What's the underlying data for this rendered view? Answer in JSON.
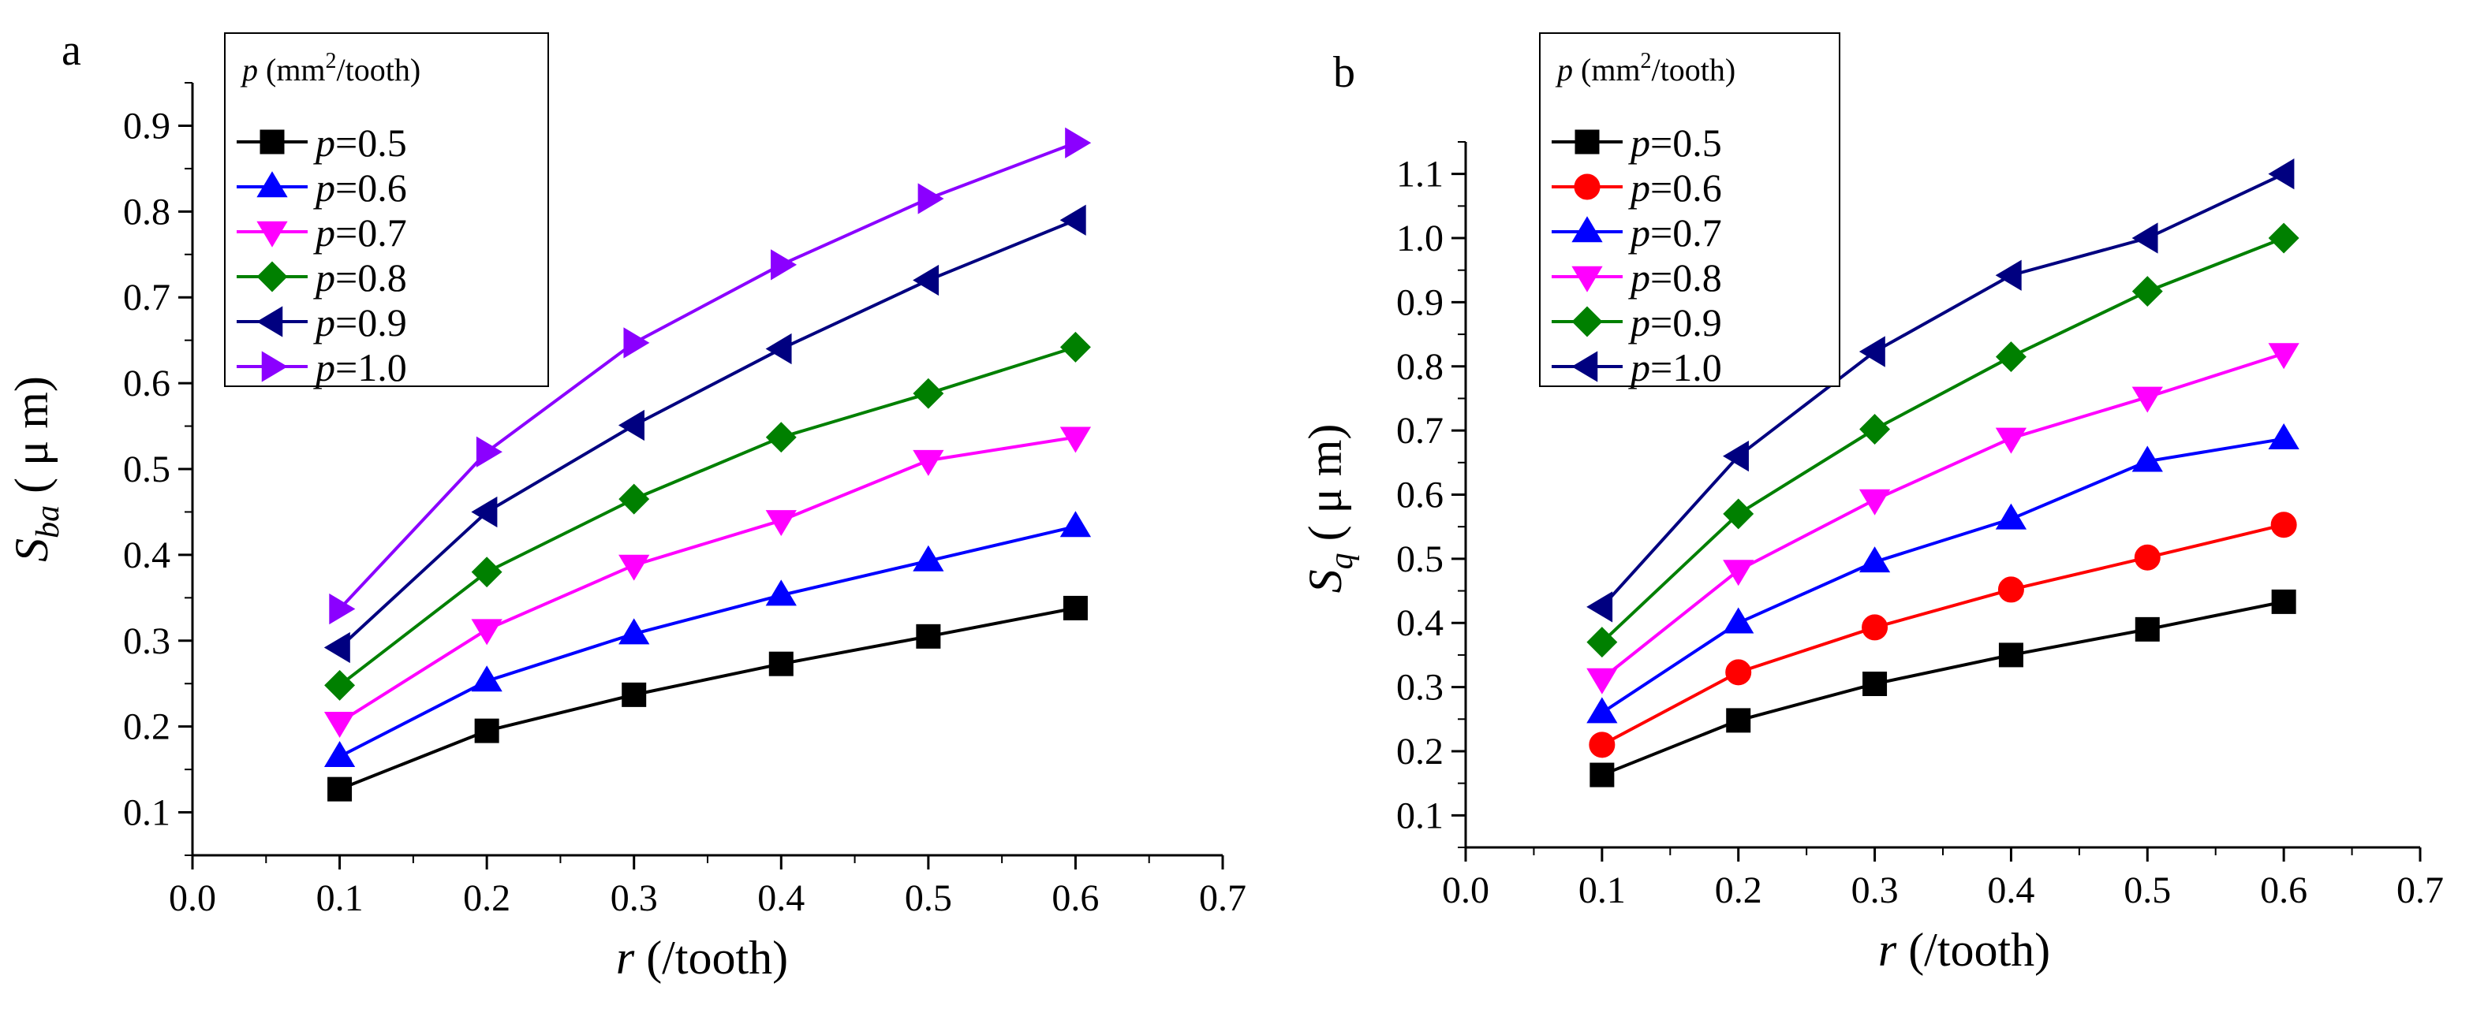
{
  "chart_data": [
    {
      "panel_label": "a",
      "type": "line",
      "xlabel_var": "r",
      "xlabel_unit": "(/tooth)",
      "ylabel_main": "S",
      "ylabel_sub": "ba",
      "ylabel_unit": "( μ m)",
      "xlim": [
        0.0,
        0.7
      ],
      "ylim": [
        0.05,
        0.95
      ],
      "xticks": [
        "0.0",
        "0.1",
        "0.2",
        "0.3",
        "0.4",
        "0.5",
        "0.6",
        "0.7"
      ],
      "yticks": [
        "0.1",
        "0.2",
        "0.3",
        "0.4",
        "0.5",
        "0.6",
        "0.7",
        "0.8",
        "0.9"
      ],
      "legend_title_var": "p",
      "legend_title_unit": "(mm²/tooth)",
      "legend_title_sup": "2",
      "legend_placement": "top-left",
      "x": [
        0.1,
        0.2,
        0.3,
        0.4,
        0.5,
        0.6
      ],
      "series": [
        {
          "label_var": "p",
          "label_value": "=0.5",
          "color": "#000000",
          "marker": "square",
          "values": [
            0.127,
            0.195,
            0.237,
            0.273,
            0.305,
            0.338
          ]
        },
        {
          "label_var": "p",
          "label_value": "=0.6",
          "color": "#0000ff",
          "marker": "triangle-up",
          "values": [
            0.165,
            0.253,
            0.308,
            0.353,
            0.393,
            0.433
          ]
        },
        {
          "label_var": "p",
          "label_value": "=0.7",
          "color": "#ff00ff",
          "marker": "triangle-down",
          "values": [
            0.205,
            0.313,
            0.388,
            0.44,
            0.51,
            0.537
          ]
        },
        {
          "label_var": "p",
          "label_value": "=0.8",
          "color": "#008000",
          "marker": "diamond",
          "values": [
            0.248,
            0.38,
            0.465,
            0.537,
            0.588,
            0.642
          ]
        },
        {
          "label_var": "p",
          "label_value": "=0.9",
          "color": "#000080",
          "marker": "triangle-left",
          "values": [
            0.292,
            0.45,
            0.551,
            0.64,
            0.72,
            0.79
          ]
        },
        {
          "label_var": "p",
          "label_value": "=1.0",
          "color": "#8b00ff",
          "marker": "triangle-right",
          "values": [
            0.337,
            0.52,
            0.647,
            0.738,
            0.815,
            0.88
          ]
        }
      ]
    },
    {
      "panel_label": "b",
      "type": "line",
      "xlabel_var": "r",
      "xlabel_unit": "(/tooth)",
      "ylabel_main": "S",
      "ylabel_sub": "q",
      "ylabel_unit": "( μ m)",
      "xlim": [
        0.0,
        0.7
      ],
      "ylim": [
        0.05,
        1.15
      ],
      "xticks": [
        "0.0",
        "0.1",
        "0.2",
        "0.3",
        "0.4",
        "0.5",
        "0.6",
        "0.7"
      ],
      "yticks": [
        "0.1",
        "0.2",
        "0.3",
        "0.4",
        "0.5",
        "0.6",
        "0.7",
        "0.8",
        "0.9",
        "1.0",
        "1.1"
      ],
      "legend_title_var": "p",
      "legend_title_unit": "(mm²/tooth)",
      "legend_title_sup": "2",
      "legend_placement": "top-left",
      "x": [
        0.1,
        0.2,
        0.3,
        0.4,
        0.5,
        0.6
      ],
      "series": [
        {
          "label_var": "p",
          "label_value": "=0.5",
          "color": "#000000",
          "marker": "square",
          "values": [
            0.163,
            0.248,
            0.305,
            0.35,
            0.39,
            0.433
          ]
        },
        {
          "label_var": "p",
          "label_value": "=0.6",
          "color": "#ff0000",
          "marker": "circle",
          "values": [
            0.21,
            0.323,
            0.393,
            0.452,
            0.502,
            0.553
          ]
        },
        {
          "label_var": "p",
          "label_value": "=0.7",
          "color": "#0000ff",
          "marker": "triangle-up",
          "values": [
            0.26,
            0.4,
            0.495,
            0.562,
            0.652,
            0.687
          ]
        },
        {
          "label_var": "p",
          "label_value": "=0.8",
          "color": "#ff00ff",
          "marker": "triangle-down",
          "values": [
            0.313,
            0.482,
            0.592,
            0.688,
            0.752,
            0.82
          ]
        },
        {
          "label_var": "p",
          "label_value": "=0.9",
          "color": "#008000",
          "marker": "diamond",
          "values": [
            0.37,
            0.57,
            0.702,
            0.815,
            0.917,
            1.0
          ]
        },
        {
          "label_var": "p",
          "label_value": "=1.0",
          "color": "#000080",
          "marker": "triangle-left",
          "values": [
            0.425,
            0.66,
            0.823,
            0.942,
            1.0,
            1.1
          ]
        }
      ]
    }
  ]
}
